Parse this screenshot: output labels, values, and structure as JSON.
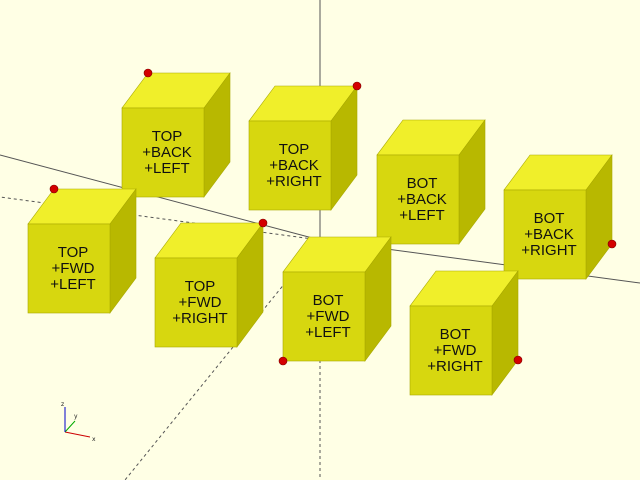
{
  "scene": {
    "background": "#ffffe5",
    "cube_colors": {
      "top": "#f0ef2a",
      "front": "#d7d70f",
      "side": "#b8b800",
      "edge": "#a8a800"
    },
    "marker_color": "#d40000",
    "axis_color": "#555555"
  },
  "cubes": [
    {
      "name": "top-back-left",
      "lines": [
        "TOP",
        "+BACK",
        "+LEFT"
      ]
    },
    {
      "name": "top-back-right",
      "lines": [
        "TOP",
        "+BACK",
        "+RIGHT"
      ]
    },
    {
      "name": "bot-back-left",
      "lines": [
        "BOT",
        "+BACK",
        "+LEFT"
      ]
    },
    {
      "name": "bot-back-right",
      "lines": [
        "BOT",
        "+BACK",
        "+RIGHT"
      ]
    },
    {
      "name": "top-fwd-left",
      "lines": [
        "TOP",
        "+FWD",
        "+LEFT"
      ]
    },
    {
      "name": "top-fwd-right",
      "lines": [
        "TOP",
        "+FWD",
        "+RIGHT"
      ]
    },
    {
      "name": "bot-fwd-left",
      "lines": [
        "BOT",
        "+FWD",
        "+LEFT"
      ]
    },
    {
      "name": "bot-fwd-right",
      "lines": [
        "BOT",
        "+FWD",
        "+RIGHT"
      ]
    }
  ],
  "axis_indicator": {
    "x": "x",
    "y": "y",
    "z": "z"
  }
}
